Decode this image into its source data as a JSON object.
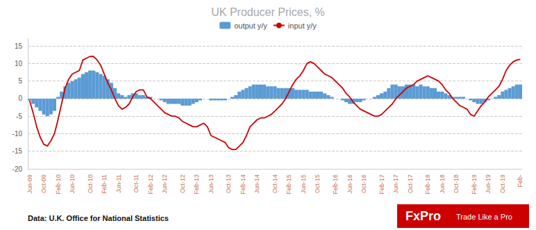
{
  "chart_data": {
    "type": "bar",
    "title": "UK Producer Prices, %",
    "annotations": [
      "Data: U.K. Office for National Statistics",
      "FxPro",
      "Trade Like a Pro"
    ],
    "categories": [
      "Jun-09",
      null,
      null,
      null,
      "Oct-09",
      null,
      null,
      null,
      "Feb-10",
      null,
      null,
      null,
      "Jun-10",
      null,
      null,
      null,
      null,
      "Oct-10",
      null,
      null,
      null,
      "Feb-11",
      null,
      null,
      null,
      "Jun-11",
      null,
      null,
      null,
      null,
      "Oct-11",
      null,
      null,
      null,
      "Feb-12",
      null,
      null,
      null,
      "Jun-12",
      null,
      null,
      null,
      null,
      "Oct-12",
      null,
      null,
      null,
      "Feb-13",
      null,
      null,
      null,
      "Jun-13",
      null,
      null,
      null,
      null,
      "Oct-13",
      null,
      null,
      null,
      "Feb-14",
      null,
      null,
      null,
      "Jun-14",
      null,
      null,
      null,
      null,
      "Oct-14",
      null,
      null,
      null,
      "Feb-15",
      null,
      null,
      null,
      "Jun-15",
      null,
      null,
      null,
      "Oct-15",
      null,
      null,
      null,
      null,
      "Feb-16",
      null,
      null,
      null,
      "Jun-16",
      null,
      null,
      null,
      "Oct-16",
      null,
      null,
      null,
      null,
      "Feb-17",
      null,
      null,
      null,
      "Jun-17",
      null,
      null,
      null,
      "Oct-17",
      null,
      null,
      null,
      null,
      "Feb-18",
      null,
      null,
      null,
      "Jun-18",
      null,
      null,
      null,
      "Oct-18",
      null,
      null,
      null,
      null,
      "Feb-19",
      null,
      null,
      null,
      "Jun-19",
      null,
      null,
      null,
      "Oct-19",
      null,
      null,
      null,
      null,
      "Feb-"
    ],
    "series": [
      {
        "name": "output y/y",
        "type": "bar",
        "color": "#5b9bd5",
        "values": [
          -0.5,
          -1.5,
          -2.5,
          -3.5,
          -4.5,
          -5.0,
          -4.5,
          -3.5,
          0.5,
          2.0,
          3.5,
          4.5,
          5.0,
          5.5,
          6.0,
          7.0,
          7.5,
          8.0,
          8.0,
          7.5,
          7.0,
          6.5,
          5.5,
          4.5,
          3.0,
          1.5,
          1.0,
          0.5,
          1.0,
          1.5,
          1.5,
          1.0,
          1.0,
          0.5,
          0.5,
          0.0,
          0.0,
          -0.5,
          -1.0,
          -1.5,
          -1.5,
          -1.5,
          -1.5,
          -2.0,
          -2.0,
          -2.0,
          -1.5,
          -1.0,
          -0.5,
          0.0,
          0.0,
          -0.5,
          -0.5,
          -0.5,
          -0.5,
          -0.5,
          0.0,
          0.5,
          1.0,
          2.0,
          2.5,
          3.0,
          3.5,
          4.0,
          4.0,
          4.0,
          4.0,
          3.5,
          3.5,
          3.5,
          3.0,
          3.0,
          3.0,
          3.0,
          3.0,
          2.5,
          2.5,
          2.5,
          2.5,
          2.0,
          2.0,
          2.0,
          2.0,
          1.5,
          1.0,
          0.5,
          0.0,
          0.0,
          -0.5,
          -1.0,
          -1.5,
          -1.5,
          -1.0,
          -1.0,
          -0.5,
          0.0,
          0.0,
          0.5,
          1.0,
          1.5,
          2.0,
          3.0,
          4.0,
          4.0,
          3.5,
          3.5,
          4.0,
          4.0,
          4.0,
          3.5,
          4.0,
          3.5,
          3.5,
          3.0,
          3.0,
          2.0,
          2.0,
          1.5,
          1.0,
          0.5,
          0.5,
          0.5,
          0.5,
          0.0,
          -0.5,
          -1.0,
          -1.5,
          -1.5,
          -1.0,
          -0.5,
          0.0,
          0.5,
          1.0,
          2.0,
          2.5,
          3.0,
          3.5,
          4.0,
          4.0
        ]
      },
      {
        "name": "input y/y",
        "type": "line",
        "color": "#cc0000",
        "values": [
          -0.5,
          -4.0,
          -8.0,
          -11.0,
          -13.0,
          -13.5,
          -12.0,
          -10.0,
          -6.0,
          -1.5,
          3.0,
          5.5,
          7.0,
          7.5,
          8.0,
          11.0,
          11.5,
          12.0,
          12.0,
          11.0,
          9.5,
          7.0,
          4.5,
          2.5,
          0.0,
          -2.0,
          -3.0,
          -2.5,
          -1.5,
          0.5,
          2.0,
          2.5,
          2.5,
          0.5,
          0.0,
          -1.0,
          -2.0,
          -3.0,
          -4.0,
          -4.5,
          -5.0,
          -5.0,
          -5.5,
          -6.5,
          -7.0,
          -7.5,
          -8.0,
          -8.0,
          -7.5,
          -7.0,
          -8.0,
          -10.5,
          -11.0,
          -11.5,
          -12.0,
          -12.5,
          -14.0,
          -14.5,
          -14.5,
          -13.5,
          -12.5,
          -10.5,
          -8.0,
          -7.0,
          -6.0,
          -5.5,
          -5.5,
          -5.0,
          -4.5,
          -3.5,
          -2.5,
          -1.5,
          0.0,
          2.0,
          4.0,
          5.5,
          6.5,
          8.0,
          10.0,
          10.5,
          10.0,
          9.0,
          8.0,
          7.0,
          6.5,
          6.0,
          5.0,
          4.0,
          3.0,
          1.5,
          0.5,
          -1.0,
          -2.0,
          -3.0,
          -3.5,
          -4.0,
          -4.5,
          -5.0,
          -5.0,
          -4.5,
          -3.5,
          -2.5,
          -1.5,
          0.0,
          1.0,
          2.0,
          3.0,
          3.5,
          4.0,
          5.0,
          5.5,
          6.0,
          6.5,
          6.0,
          5.5,
          5.0,
          4.0,
          2.5,
          1.5,
          0.0,
          -1.0,
          -2.0,
          -2.5,
          -3.0,
          -4.5,
          -5.0,
          -3.5,
          -2.0,
          -1.0,
          0.5,
          1.5,
          2.5,
          3.5,
          5.5,
          8.0,
          9.5,
          10.5,
          11.0,
          11.2
        ]
      }
    ],
    "ylim": [
      -20,
      17
    ],
    "yticks": [
      -20,
      -15,
      -10,
      -5,
      0,
      5,
      10,
      15
    ],
    "grid": true,
    "legend": "top"
  }
}
